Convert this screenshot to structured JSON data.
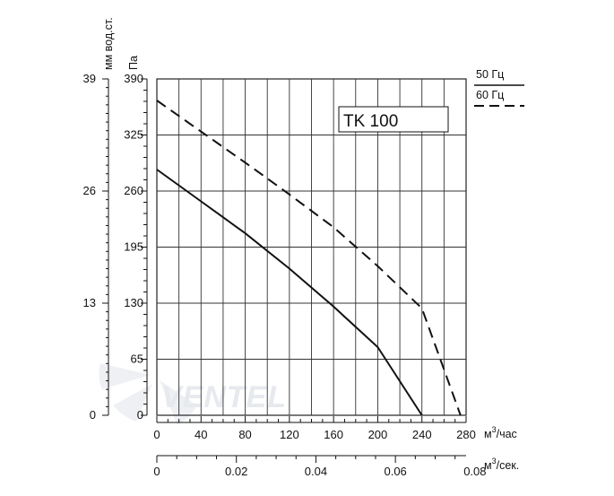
{
  "chart_data": {
    "type": "line",
    "title_box": "TK 100",
    "y_left_outer_label": "мм вод.ст.",
    "y_left_inner_label": "Па",
    "x_top_unit": "м",
    "x_top_unit_sup": "3",
    "x_top_unit_suffix": "/час",
    "x_bottom_unit": "м",
    "x_bottom_unit_sup": "3",
    "x_bottom_unit_suffix": "/сек.",
    "xlim": [
      0,
      280
    ],
    "ylim": [
      0,
      390
    ],
    "x_ticks_m3h": [
      "0",
      "40",
      "80",
      "120",
      "160",
      "200",
      "240",
      "280"
    ],
    "y_ticks_pa": [
      "0",
      "65",
      "130",
      "195",
      "260",
      "325",
      "390"
    ],
    "y_ticks_mm": [
      "0",
      "13",
      "26",
      "39"
    ],
    "x_ticks_m3s": [
      "0",
      "0.02",
      "0.04",
      "0.06",
      "0.08"
    ],
    "x_ticks_m3s_values": [
      0,
      0.02,
      0.04,
      0.06,
      0.08
    ],
    "grid": true,
    "legend": [
      {
        "label": "50 Гц",
        "style": "solid"
      },
      {
        "label": "60 Гц",
        "style": "dashed"
      }
    ],
    "series": [
      {
        "name": "50 Гц",
        "style": "solid",
        "x": [
          0,
          40,
          80,
          120,
          160,
          200,
          240
        ],
        "y": [
          285,
          248,
          211,
          170,
          126,
          79,
          0
        ]
      },
      {
        "name": "60 Гц",
        "style": "dashed",
        "x": [
          0,
          40,
          80,
          120,
          160,
          200,
          240,
          275
        ],
        "y": [
          365,
          329,
          293,
          256,
          218,
          173,
          124,
          0
        ]
      }
    ]
  },
  "watermark": "VENTEL",
  "colors": {
    "line": "#111111",
    "grid": "#333333",
    "watermark": "#e6e9ee"
  }
}
